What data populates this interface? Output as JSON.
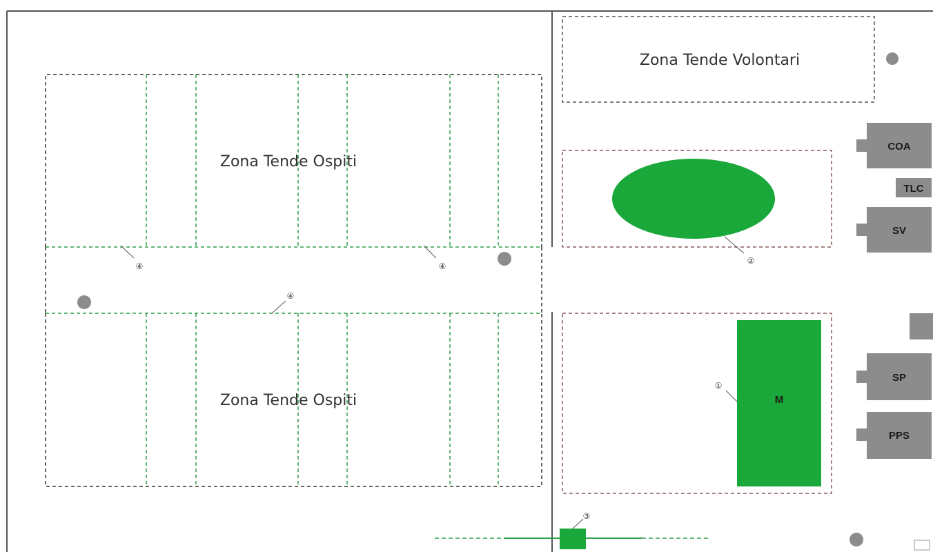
{
  "labels": {
    "volunteer_zone": "Zona Tende Volontari",
    "guest_zone_top": "Zona Tende Ospiti",
    "guest_zone_bottom": "Zona Tende Ospiti",
    "mensa": "M"
  },
  "buildings": {
    "coa": "COA",
    "tlc": "TLC",
    "sv": "SV",
    "sp": "SP",
    "pps": "PPS"
  },
  "callouts": {
    "c1": "①",
    "c2": "②",
    "c3": "③",
    "c4": "④"
  },
  "colors": {
    "green": "#1aa83a",
    "gray": "#8c8c8c",
    "dashed_black": "#333333",
    "dashed_green": "#2e9e4a",
    "dashed_red": "#b04040",
    "wall": "#555555"
  }
}
